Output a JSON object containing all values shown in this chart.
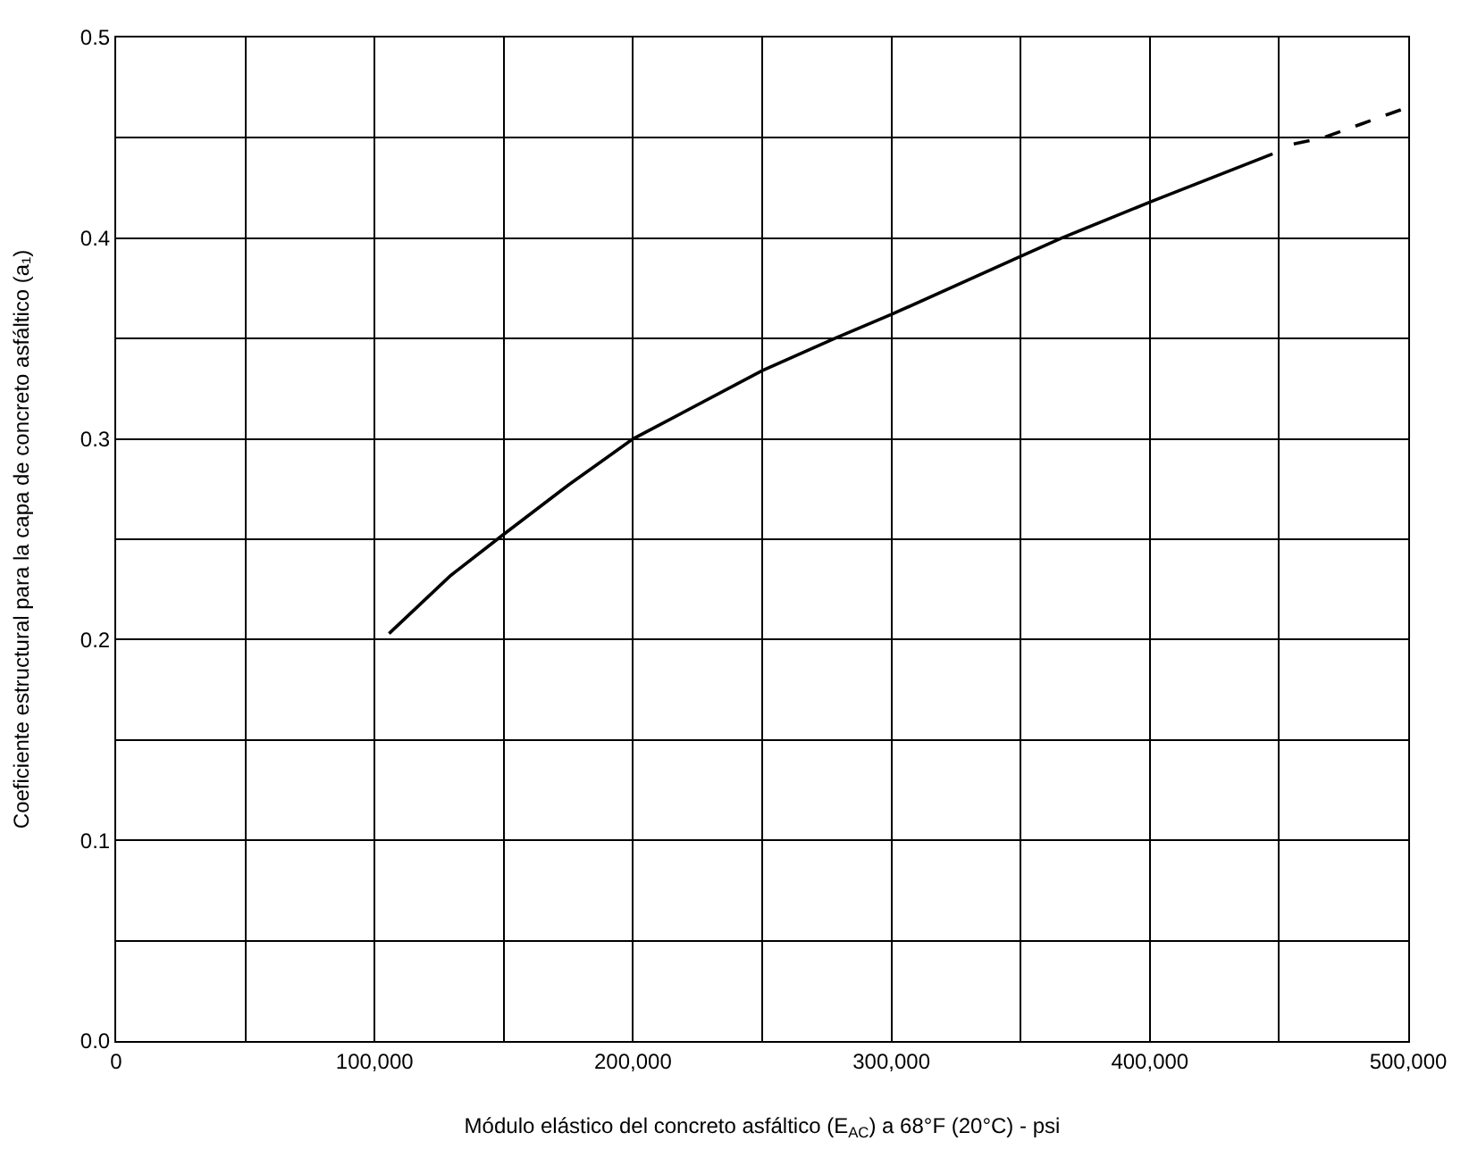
{
  "chart_data": {
    "type": "line",
    "xlabel": "Módulo elástico del concreto asfáltico (E$_{AC}$) a 68°F (20°C) - psi",
    "ylabel": "Coeficiente estructural para la capa de concreto asfáltico (a₁)",
    "series": [
      {
        "color": "#000000",
        "line_style": "solid",
        "x": [
          105600,
          129500,
          149500,
          175000,
          200000,
          250000,
          278000,
          300000,
          350000,
          365700,
          400000,
          447500
        ],
        "values": [
          0.203,
          0.232,
          0.252,
          0.277,
          0.3,
          0.334,
          0.35,
          0.362,
          0.391,
          0.4,
          0.418,
          0.442
        ]
      },
      {
        "color": "#000000",
        "line_style": "dashed",
        "x": [
          455700,
          467000,
          499300
        ],
        "values": [
          0.447,
          0.45,
          0.465
        ]
      }
    ],
    "xlim": [
      0,
      500000
    ],
    "ylim": [
      0,
      0.5
    ],
    "xticks": [
      0,
      {
        "value": 50000,
        "label": null
      },
      {
        "value": 100000,
        "label": "100,000"
      },
      {
        "value": 150000,
        "label": null
      },
      {
        "value": 200000,
        "label": "200,000"
      },
      {
        "value": 250000,
        "label": null
      },
      {
        "value": 300000,
        "label": "300,000"
      },
      {
        "value": 350000,
        "label": null
      },
      {
        "value": 400000,
        "label": "400,000"
      },
      {
        "value": 450000,
        "label": null
      },
      {
        "value": 500000,
        "label": "500,000"
      }
    ],
    "yticks": [
      {
        "value": 0,
        "label": "0.0"
      },
      {
        "value": 0.05,
        "label": null
      },
      0.1,
      {
        "value": 0.15,
        "label": null
      },
      0.2,
      {
        "value": 0.25,
        "label": null
      },
      0.3,
      {
        "value": 0.35,
        "label": null
      },
      0.4,
      {
        "value": 0.45,
        "label": null
      },
      0.5
    ],
    "grid": true,
    "marker": "none"
  }
}
